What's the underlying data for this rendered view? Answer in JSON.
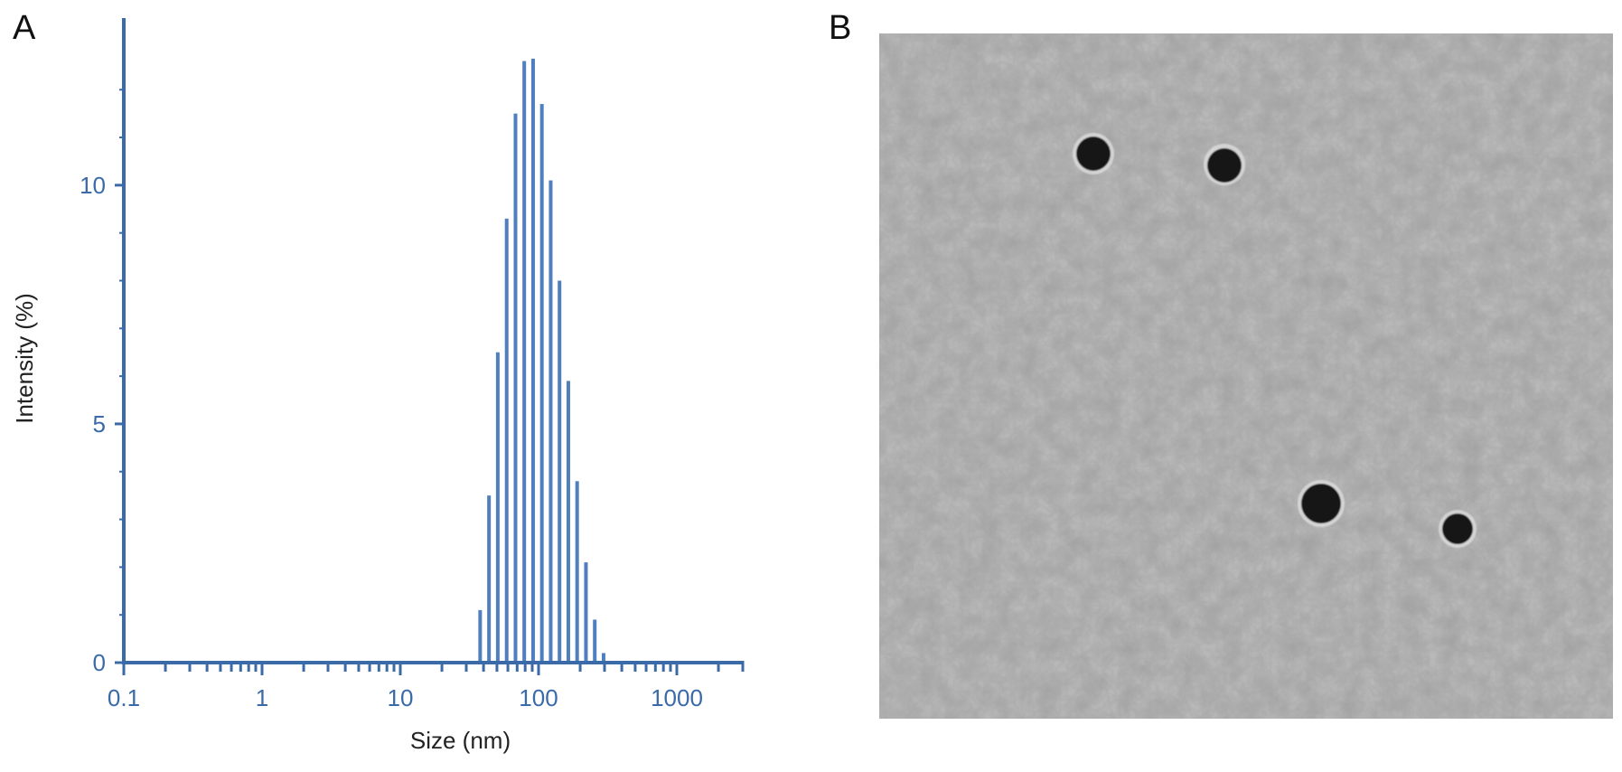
{
  "panels": {
    "a_label": "A",
    "b_label": "B"
  },
  "chart_data": {
    "type": "bar",
    "xlabel": "Size (nm)",
    "ylabel": "Intensity (%)",
    "x_scale": "log",
    "xlim": [
      0.1,
      3000
    ],
    "ylim": [
      0,
      13.5
    ],
    "x_tick_labels": [
      "0.1",
      "1",
      "10",
      "100",
      "1000"
    ],
    "x_tick_values": [
      0.1,
      1,
      10,
      100,
      1000
    ],
    "y_tick_labels": [
      "0",
      "5",
      "10"
    ],
    "y_tick_values": [
      0,
      5,
      10
    ],
    "grid": false,
    "color": "#3b6aa8",
    "bars": [
      {
        "x": 37.8,
        "y": 1.1
      },
      {
        "x": 43.8,
        "y": 3.5
      },
      {
        "x": 50.7,
        "y": 6.5
      },
      {
        "x": 58.8,
        "y": 9.3
      },
      {
        "x": 68.1,
        "y": 11.5
      },
      {
        "x": 78.8,
        "y": 12.6
      },
      {
        "x": 91.3,
        "y": 12.65
      },
      {
        "x": 105.7,
        "y": 11.7
      },
      {
        "x": 122.4,
        "y": 10.1
      },
      {
        "x": 141.8,
        "y": 8.0
      },
      {
        "x": 164.2,
        "y": 5.9
      },
      {
        "x": 190.1,
        "y": 3.8
      },
      {
        "x": 220.2,
        "y": 2.1
      },
      {
        "x": 255.0,
        "y": 0.9
      },
      {
        "x": 295.3,
        "y": 0.2
      }
    ]
  },
  "tem_image": {
    "background": "#b9b9b9",
    "particle_color": "#141414"
  }
}
